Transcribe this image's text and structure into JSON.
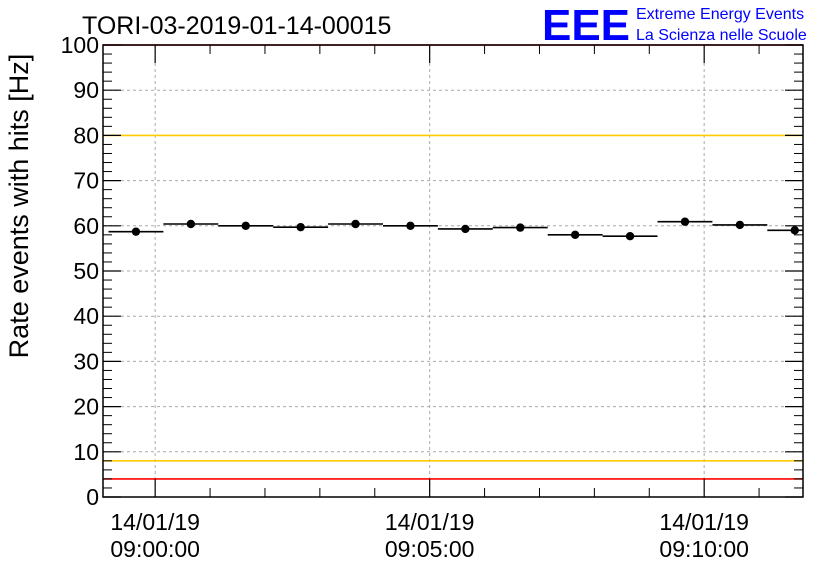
{
  "title": "TORI-03-2019-01-14-00015",
  "logo": {
    "mark": "EEE",
    "line1": "Extreme Energy Events",
    "line2": "La Scienza nelle Scuole",
    "color": "#0000ff"
  },
  "chart_data": {
    "type": "scatter",
    "title": "TORI-03-2019-01-14-00015",
    "ylabel": "Rate events with hits [Hz]",
    "xlabel": "",
    "ylim": [
      0,
      100
    ],
    "y_ticks": [
      0,
      10,
      20,
      30,
      40,
      50,
      60,
      70,
      80,
      90,
      100
    ],
    "x_unit": "minutes after 14/01/19 09:00:00",
    "xlim": [
      -0.95,
      11.8
    ],
    "x_ticks": [
      {
        "x": 0,
        "date": "14/01/19",
        "time": "09:00:00"
      },
      {
        "x": 5,
        "date": "14/01/19",
        "time": "09:05:00"
      },
      {
        "x": 10,
        "date": "14/01/19",
        "time": "09:10:00"
      }
    ],
    "bin_width_minutes": 1,
    "series": [
      {
        "name": "rate",
        "x": [
          -0.35,
          0.65,
          1.65,
          2.65,
          3.65,
          4.65,
          5.65,
          6.65,
          7.65,
          8.65,
          9.65,
          10.65,
          11.65
        ],
        "y": [
          58.7,
          60.4,
          60.0,
          59.7,
          60.4,
          60.0,
          59.3,
          59.6,
          58.0,
          57.7,
          60.9,
          60.2,
          59.0
        ],
        "yerr": [
          0.8,
          0.8,
          0.8,
          0.8,
          0.8,
          0.8,
          0.8,
          0.8,
          0.8,
          0.8,
          0.8,
          0.8,
          0.8
        ]
      }
    ],
    "reference_lines": [
      {
        "name": "upper-limit",
        "y": 100,
        "color": "#ff0000"
      },
      {
        "name": "upper-warning",
        "y": 80,
        "color": "#ffcc00"
      },
      {
        "name": "lower-warning",
        "y": 8,
        "color": "#ffcc00"
      },
      {
        "name": "lower-limit",
        "y": 4,
        "color": "#ff0000"
      }
    ],
    "grid": true
  }
}
